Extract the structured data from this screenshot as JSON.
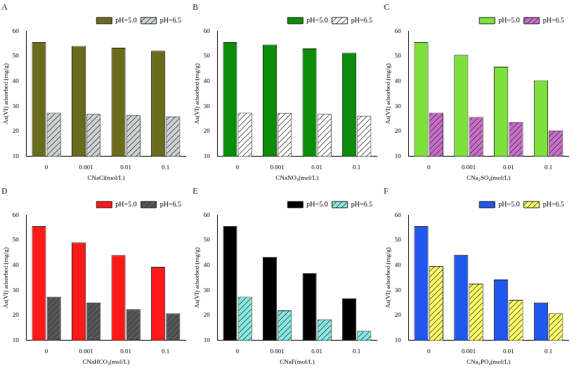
{
  "chart_data": [
    {
      "type": "bar",
      "title": "A",
      "x_label": "CNaCl(mol/L)",
      "y_label": "As(VI) adsorbed (mg/g)",
      "categories": [
        "0",
        "0.001",
        "0.01",
        "0.1"
      ],
      "series": [
        {
          "name": "pH=5.0",
          "color": "#6b6b1e",
          "values": [
            55.6,
            54.1,
            53.4,
            52.2
          ]
        },
        {
          "name": "pH=6.5",
          "color": "#c9d1d1",
          "values": [
            27.4,
            26.9,
            26.5,
            25.9
          ]
        }
      ],
      "ylim": [
        10,
        60
      ],
      "yticks": [
        10,
        20,
        30,
        40,
        50,
        60
      ],
      "grid": false,
      "legend": "top right"
    },
    {
      "type": "bar",
      "title": "B",
      "x_label": "CNaNO₃(mol/L)",
      "y_label": "As(VI) adsorbed (mg/g)",
      "categories": [
        "0",
        "0.001",
        "0.01",
        "0.1"
      ],
      "series": [
        {
          "name": "pH=5.0",
          "color": "#0b8c0b",
          "values": [
            55.6,
            54.6,
            53.1,
            51.3
          ]
        },
        {
          "name": "pH=6.5",
          "color": "#ffffff",
          "values": [
            27.4,
            27.3,
            26.9,
            26.2
          ]
        }
      ],
      "ylim": [
        10,
        60
      ],
      "yticks": [
        10,
        20,
        30,
        40,
        50,
        60
      ],
      "grid": false,
      "legend": "top right"
    },
    {
      "type": "bar",
      "title": "C",
      "x_label": "CNa₂SO₄(mol/L)",
      "y_label": "As(VI) adsorbed (mg/g)",
      "categories": [
        "0",
        "0.001",
        "0.01",
        "0.1"
      ],
      "series": [
        {
          "name": "pH=5.0",
          "color": "#7ee03c",
          "values": [
            55.6,
            50.5,
            45.8,
            40.3
          ]
        },
        {
          "name": "pH=6.5",
          "color": "#c86cc8",
          "values": [
            27.4,
            25.7,
            23.7,
            20.3
          ]
        }
      ],
      "ylim": [
        10,
        60
      ],
      "yticks": [
        10,
        20,
        30,
        40,
        50,
        60
      ],
      "grid": false,
      "legend": "top right"
    },
    {
      "type": "bar",
      "title": "D",
      "x_label": "CNaHCO₃(mol/L)",
      "y_label": "As(VI) adsorbed (mg/g)",
      "categories": [
        "0",
        "0.001",
        "0.01",
        "0.1"
      ],
      "series": [
        {
          "name": "pH=5.0",
          "color": "#ff1a1a",
          "values": [
            55.6,
            49.1,
            44.0,
            39.3
          ]
        },
        {
          "name": "pH=6.5",
          "color": "#565656",
          "values": [
            27.4,
            25.1,
            22.4,
            20.7
          ]
        }
      ],
      "ylim": [
        10,
        60
      ],
      "yticks": [
        10,
        20,
        30,
        40,
        50,
        60
      ],
      "grid": false,
      "legend": "top right"
    },
    {
      "type": "bar",
      "title": "E",
      "x_label": "CNaF(mol/L)",
      "y_label": "As(VI) adsorbed (mg/g)",
      "categories": [
        "0",
        "0.001",
        "0.01",
        "0.1"
      ],
      "series": [
        {
          "name": "pH=5.0",
          "color": "#000000",
          "values": [
            55.6,
            43.3,
            36.9,
            26.7
          ]
        },
        {
          "name": "pH=6.5",
          "color": "#84e8e0",
          "values": [
            27.4,
            21.9,
            18.3,
            13.7
          ]
        }
      ],
      "ylim": [
        10,
        60
      ],
      "yticks": [
        10,
        20,
        30,
        40,
        50,
        60
      ],
      "grid": false,
      "legend": "top right"
    },
    {
      "type": "bar",
      "title": "F",
      "x_label": "CNa₃PO₄(mol/L)",
      "y_label": "As(VI) adsorbed (mg/g)",
      "categories": [
        "0",
        "0.001",
        "0.01",
        "0.1"
      ],
      "series": [
        {
          "name": "pH=5.0",
          "color": "#2257ee",
          "values": [
            55.6,
            44.2,
            34.3,
            25.1
          ]
        },
        {
          "name": "pH=6.5",
          "color": "#ffff66",
          "values": [
            39.6,
            32.6,
            26.1,
            20.7
          ]
        }
      ],
      "ylim": [
        10,
        60
      ],
      "yticks": [
        10,
        20,
        30,
        40,
        50,
        60
      ],
      "grid": false,
      "legend": "top right"
    }
  ]
}
